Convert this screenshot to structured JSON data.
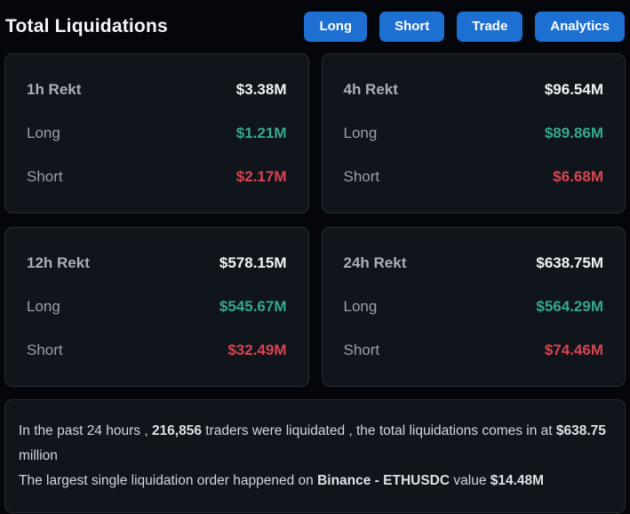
{
  "header": {
    "title": "Total Liquidations",
    "buttons": [
      {
        "label": "Long"
      },
      {
        "label": "Short"
      },
      {
        "label": "Trade"
      },
      {
        "label": "Analytics"
      }
    ]
  },
  "labels": {
    "long": "Long",
    "short": "Short"
  },
  "cards": [
    {
      "period": "1h Rekt",
      "total": "$3.38M",
      "long": "$1.21M",
      "short": "$2.17M"
    },
    {
      "period": "4h Rekt",
      "total": "$96.54M",
      "long": "$89.86M",
      "short": "$6.68M"
    },
    {
      "period": "12h Rekt",
      "total": "$578.15M",
      "long": "$545.67M",
      "short": "$32.49M"
    },
    {
      "period": "24h Rekt",
      "total": "$638.75M",
      "long": "$564.29M",
      "short": "$74.46M"
    }
  ],
  "summary": {
    "line1": [
      {
        "text": "In the past 24 hours , "
      },
      {
        "text": "216,856"
      },
      {
        "text": " traders were liquidated , the total liquidations comes in at "
      },
      {
        "text": "$638.75"
      },
      {
        "text": " million"
      }
    ],
    "line2": [
      {
        "text": "The largest single liquidation order happened on "
      },
      {
        "text": "Binance - ETHUSDC"
      },
      {
        "text": " value "
      },
      {
        "text": "$14.48M"
      }
    ]
  },
  "colors": {
    "accent_blue": "#1d6fd2",
    "long_green": "#36a98c",
    "short_red": "#d74552",
    "card_background": "#10141b",
    "page_background": "#04060b"
  }
}
